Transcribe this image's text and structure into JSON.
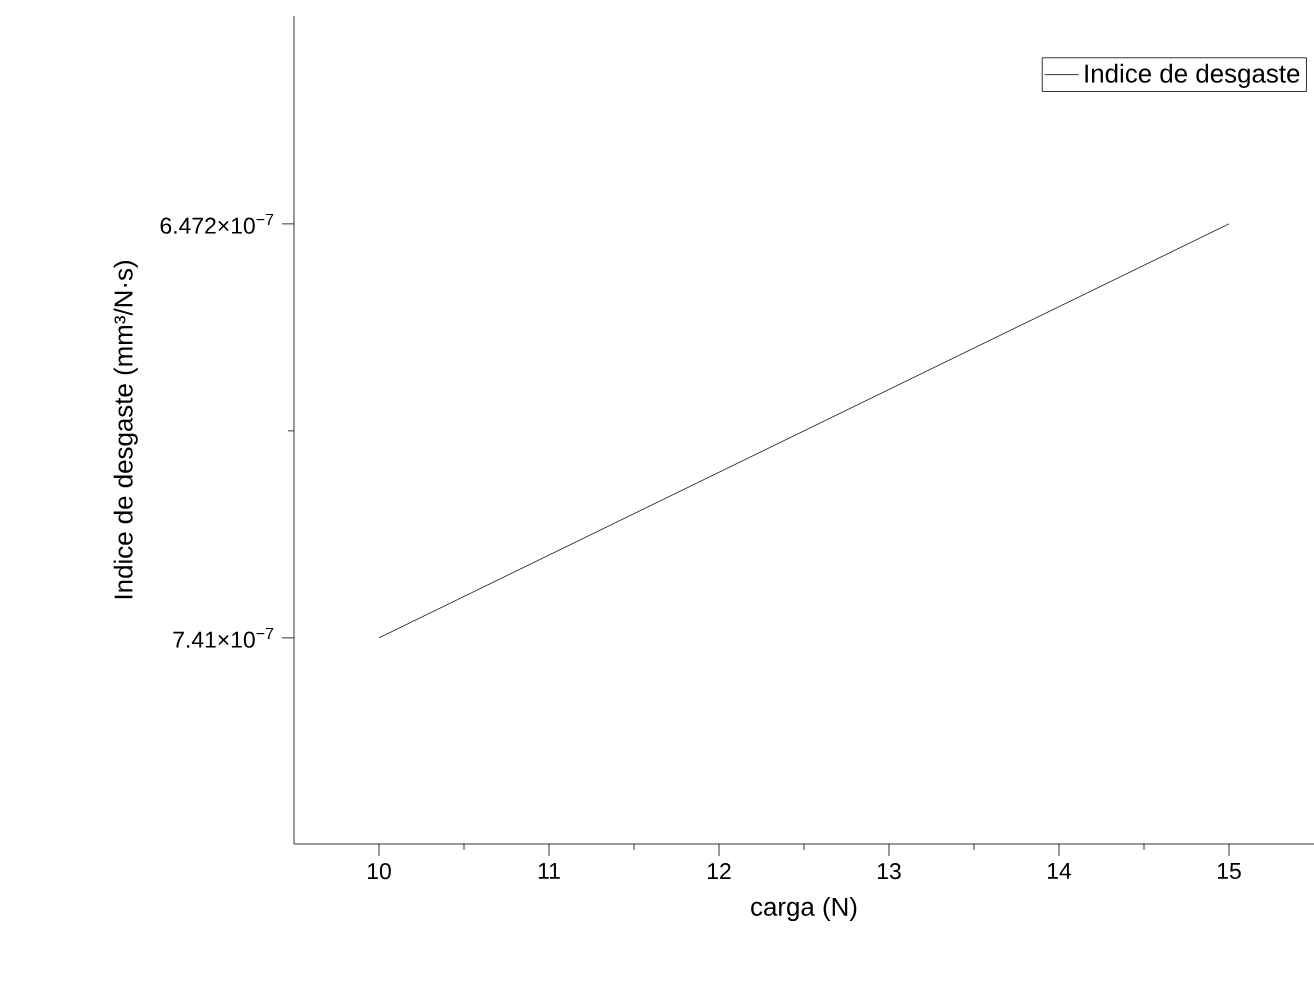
{
  "chart_data": {
    "type": "line",
    "xlabel": "carga (N)",
    "ylabel": "Indice de desgaste (mm³/N·s)",
    "x": [
      10,
      15
    ],
    "series": [
      {
        "name": "Indice de desgaste",
        "color": "#000000",
        "values": [
          7.41e-07,
          6.472e-07
        ]
      }
    ],
    "xlim": [
      9.5,
      15.5
    ],
    "xticks": [
      10,
      11,
      12,
      13,
      14,
      15
    ],
    "ylim": [
      7.877e-07,
      6.001e-07
    ],
    "yticks": [
      {
        "value": 6.472e-07,
        "label": "6.472×10$^{−7}$"
      },
      {
        "value": 7.41e-07,
        "label": "7.41×10$^{−7}$"
      }
    ],
    "legend": "top right",
    "marker": "none",
    "line_style": "solid",
    "grid": false
  }
}
